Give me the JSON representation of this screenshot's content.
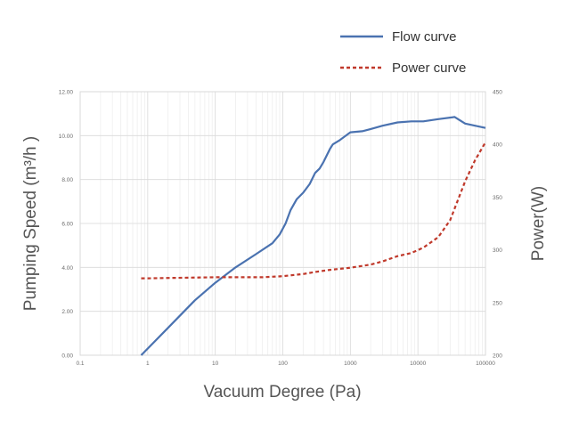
{
  "chart_data": {
    "type": "line",
    "xlabel": "Vacuum Degree (Pa)",
    "ylabel": "Pumping Speed (m³/h )",
    "y2label": "Power(W)",
    "x_scale": "log",
    "xlim": [
      0.1,
      100000
    ],
    "ylim": [
      0,
      12
    ],
    "y2lim": [
      200,
      450
    ],
    "x_ticks": [
      "0.1",
      "1",
      "10",
      "100",
      "1000",
      "10000",
      "100000"
    ],
    "y_ticks": [
      "0.00",
      "2.00",
      "4.00",
      "6.00",
      "8.00",
      "10.00",
      "12.00"
    ],
    "y2_ticks": [
      "200",
      "250",
      "300",
      "350",
      "400",
      "450"
    ],
    "grid": true,
    "legend_position": "top-right",
    "series": [
      {
        "name": "Flow curve",
        "axis": "left",
        "color": "#4a72b0",
        "style": "solid",
        "x": [
          0.8,
          2,
          5,
          10,
          20,
          40,
          70,
          90,
          110,
          130,
          160,
          200,
          250,
          300,
          350,
          400,
          500,
          550,
          700,
          1000,
          1500,
          2000,
          3000,
          5000,
          8000,
          12000,
          20000,
          35000,
          50000,
          100000
        ],
        "y": [
          0.0,
          1.25,
          2.5,
          3.3,
          4.0,
          4.6,
          5.1,
          5.5,
          6.0,
          6.6,
          7.1,
          7.4,
          7.8,
          8.3,
          8.5,
          8.8,
          9.4,
          9.6,
          9.8,
          10.15,
          10.2,
          10.3,
          10.45,
          10.6,
          10.65,
          10.65,
          10.75,
          10.85,
          10.55,
          10.35
        ]
      },
      {
        "name": "Power curve",
        "axis": "right",
        "color": "#c0392b",
        "style": "dashed",
        "x": [
          0.8,
          1,
          10,
          50,
          100,
          200,
          300,
          500,
          1000,
          2000,
          3000,
          5000,
          8000,
          12000,
          20000,
          30000,
          50000,
          70000,
          100000
        ],
        "y": [
          273,
          273,
          274,
          274,
          275,
          277,
          279,
          281,
          283,
          286,
          289,
          294,
          297,
          302,
          312,
          328,
          365,
          385,
          402
        ]
      }
    ]
  }
}
